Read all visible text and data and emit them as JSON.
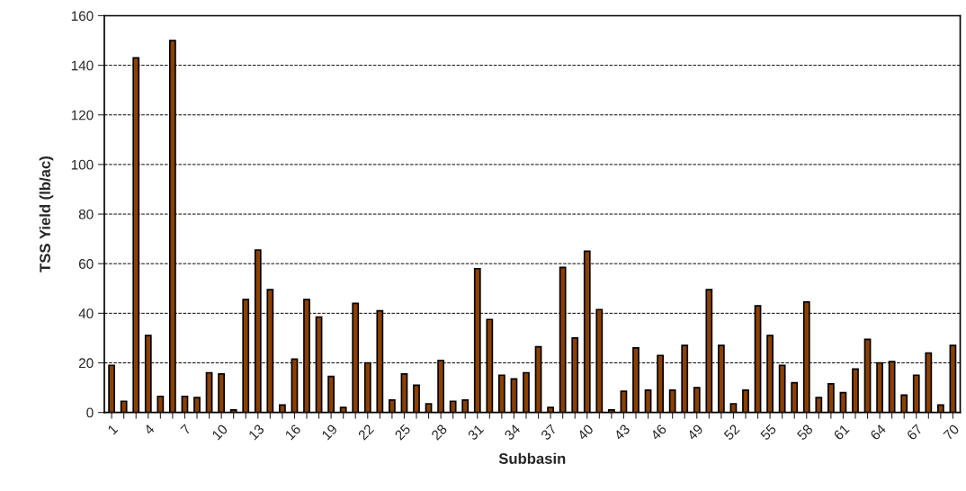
{
  "chart_data": {
    "type": "bar",
    "xlabel": "Subbasin",
    "ylabel": "TSS Yield (lb/ac)",
    "categories": [
      "1",
      null,
      null,
      "4",
      null,
      null,
      "7",
      null,
      null,
      "10",
      null,
      null,
      "13",
      null,
      null,
      "16",
      null,
      null,
      "19",
      null,
      null,
      "22",
      null,
      null,
      "25",
      null,
      null,
      "28",
      null,
      null,
      "31",
      null,
      null,
      "34",
      null,
      null,
      "37",
      null,
      null,
      "40",
      null,
      null,
      "43",
      null,
      null,
      "46",
      null,
      null,
      "49",
      null,
      null,
      "52",
      null,
      null,
      "55",
      null,
      null,
      "58",
      null,
      null,
      "61",
      null,
      null,
      "64",
      null,
      null,
      "67",
      null,
      null,
      "70"
    ],
    "values": [
      19,
      4.5,
      143,
      31,
      6.5,
      150,
      6.5,
      6,
      16,
      15.5,
      1,
      45.5,
      65.5,
      49.5,
      3,
      21.5,
      45.5,
      38.5,
      14.5,
      2,
      44,
      20,
      41,
      5,
      15.5,
      11,
      3.5,
      21,
      4.5,
      5,
      58,
      37.5,
      15,
      13.5,
      16,
      26.5,
      2,
      58.5,
      30,
      65,
      41.5,
      1,
      8.5,
      26,
      9,
      23,
      9,
      27,
      10,
      49.5,
      27,
      3.5,
      9,
      43,
      31,
      19,
      12,
      44.5,
      6,
      11.5,
      8,
      17.5,
      29.5,
      20,
      20.5,
      7,
      15,
      24,
      3,
      27
    ],
    "color": "#8c4000",
    "ylim": [
      0,
      160
    ],
    "yticks": [
      0,
      20,
      40,
      60,
      80,
      100,
      120,
      140,
      160
    ],
    "grid": "y"
  }
}
